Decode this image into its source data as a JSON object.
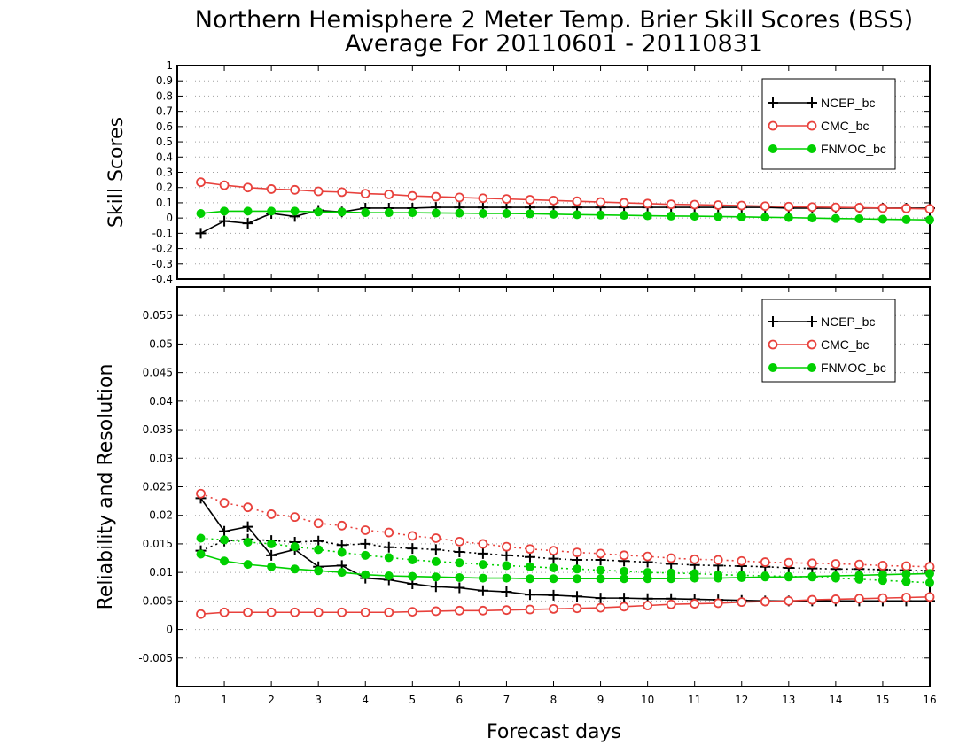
{
  "chart_data": {
    "type": "line",
    "title_line1": "Northern Hemisphere 2 Meter Temp. Brier Skill Scores (BSS)",
    "title_line2": "Average For 20110601 - 20110831",
    "xlabel": "Forecast days",
    "xlim": [
      0,
      16
    ],
    "xticks": [
      "0",
      "1",
      "2",
      "3",
      "4",
      "5",
      "6",
      "7",
      "8",
      "9",
      "10",
      "11",
      "12",
      "13",
      "14",
      "15",
      "16"
    ],
    "colors": {
      "NCEP_bc": "#000000",
      "CMC_bc": "#e8413c",
      "FNMOC_bc": "#00d000",
      "grid": "#a0a0a0"
    },
    "x": [
      0.5,
      1,
      1.5,
      2,
      2.5,
      3,
      3.5,
      4,
      4.5,
      5,
      5.5,
      6,
      6.5,
      7,
      7.5,
      8,
      8.5,
      9,
      9.5,
      10,
      10.5,
      11,
      11.5,
      12,
      12.5,
      13,
      13.5,
      14,
      14.5,
      15,
      15.5,
      16
    ],
    "panels": [
      {
        "ylabel": "Skill Scores",
        "ylim": [
          -0.4,
          1
        ],
        "yticks": [
          "-0.4",
          "-0.3",
          "-0.2",
          "-0.1",
          "0",
          "0.1",
          "0.2",
          "0.3",
          "0.4",
          "0.5",
          "0.6",
          "0.7",
          "0.8",
          "0.9",
          "1"
        ],
        "grid": true,
        "legend": "top-right",
        "legend_entries": [
          "NCEP_bc",
          "CMC_bc",
          "FNMOC_bc"
        ],
        "series": [
          {
            "name": "NCEP_bc",
            "style": "solid",
            "marker": "plus",
            "values": [
              -0.1,
              -0.02,
              -0.035,
              0.03,
              0.01,
              0.05,
              0.04,
              0.065,
              0.065,
              0.065,
              0.07,
              0.07,
              0.07,
              0.07,
              0.07,
              0.07,
              0.07,
              0.07,
              0.07,
              0.07,
              0.07,
              0.07,
              0.07,
              0.07,
              0.07,
              0.065,
              0.065,
              0.065,
              0.065,
              0.065,
              0.065,
              0.065
            ]
          },
          {
            "name": "CMC_bc",
            "style": "solid",
            "marker": "open-circle",
            "values": [
              0.235,
              0.215,
              0.2,
              0.19,
              0.185,
              0.175,
              0.17,
              0.16,
              0.155,
              0.145,
              0.14,
              0.135,
              0.13,
              0.125,
              0.12,
              0.115,
              0.11,
              0.105,
              0.1,
              0.095,
              0.09,
              0.088,
              0.085,
              0.082,
              0.078,
              0.075,
              0.072,
              0.07,
              0.068,
              0.065,
              0.063,
              0.06
            ]
          },
          {
            "name": "FNMOC_bc",
            "style": "solid",
            "marker": "filled-circle",
            "values": [
              0.03,
              0.045,
              0.045,
              0.045,
              0.045,
              0.04,
              0.04,
              0.035,
              0.035,
              0.035,
              0.033,
              0.032,
              0.03,
              0.03,
              0.028,
              0.025,
              0.022,
              0.02,
              0.018,
              0.015,
              0.013,
              0.012,
              0.01,
              0.008,
              0.005,
              0.003,
              0,
              -0.003,
              -0.005,
              -0.008,
              -0.01,
              -0.012
            ]
          }
        ]
      },
      {
        "ylabel": "Reliability and Resolution",
        "ylim": [
          -0.01,
          0.06
        ],
        "yticks": [
          "-0.005",
          "0",
          "0.005",
          "0.01",
          "0.015",
          "0.02",
          "0.025",
          "0.03",
          "0.035",
          "0.04",
          "0.045",
          "0.05",
          "0.055"
        ],
        "grid": true,
        "legend": "top-right",
        "legend_entries": [
          "NCEP_bc",
          "CMC_bc",
          "FNMOC_bc"
        ],
        "series": [
          {
            "name": "NCEP_bc",
            "metric": "reliability",
            "style": "solid",
            "marker": "plus",
            "values": [
              0.023,
              0.0172,
              0.018,
              0.013,
              0.014,
              0.011,
              0.0112,
              0.009,
              0.0087,
              0.008,
              0.0075,
              0.0073,
              0.0068,
              0.0066,
              0.0061,
              0.006,
              0.0058,
              0.0055,
              0.0055,
              0.0054,
              0.0054,
              0.0053,
              0.0052,
              0.0051,
              0.005,
              0.005,
              0.005,
              0.005,
              0.005,
              0.005,
              0.005,
              0.005
            ]
          },
          {
            "name": "NCEP_bc",
            "metric": "resolution",
            "style": "dotted",
            "marker": "plus",
            "values": [
              0.0138,
              0.0155,
              0.0158,
              0.0156,
              0.0153,
              0.0155,
              0.0148,
              0.015,
              0.0144,
              0.0142,
              0.014,
              0.0136,
              0.0133,
              0.013,
              0.0127,
              0.0124,
              0.0122,
              0.0122,
              0.012,
              0.0118,
              0.0115,
              0.0113,
              0.0112,
              0.0111,
              0.011,
              0.0108,
              0.0107,
              0.0106,
              0.0106,
              0.0105,
              0.0104,
              0.0103
            ]
          },
          {
            "name": "CMC_bc",
            "metric": "reliability",
            "style": "solid",
            "marker": "open-circle",
            "values": [
              0.0027,
              0.003,
              0.003,
              0.003,
              0.003,
              0.003,
              0.003,
              0.003,
              0.003,
              0.0031,
              0.0032,
              0.0033,
              0.0033,
              0.0034,
              0.0035,
              0.0036,
              0.0037,
              0.0038,
              0.004,
              0.0042,
              0.0044,
              0.0045,
              0.0046,
              0.0048,
              0.0049,
              0.005,
              0.0052,
              0.0053,
              0.0054,
              0.0055,
              0.0056,
              0.0057
            ]
          },
          {
            "name": "CMC_bc",
            "metric": "resolution",
            "style": "dotted",
            "marker": "open-circle",
            "values": [
              0.0238,
              0.0222,
              0.0214,
              0.0202,
              0.0197,
              0.0186,
              0.0182,
              0.0174,
              0.017,
              0.0164,
              0.016,
              0.0154,
              0.015,
              0.0145,
              0.0141,
              0.0138,
              0.0135,
              0.0133,
              0.013,
              0.0128,
              0.0125,
              0.0123,
              0.0122,
              0.012,
              0.0118,
              0.0117,
              0.0116,
              0.0115,
              0.0114,
              0.0112,
              0.0111,
              0.011
            ]
          },
          {
            "name": "FNMOC_bc",
            "metric": "reliability",
            "style": "solid",
            "marker": "filled-circle",
            "values": [
              0.0132,
              0.012,
              0.0114,
              0.011,
              0.0106,
              0.0103,
              0.01,
              0.0096,
              0.0094,
              0.0093,
              0.0092,
              0.0091,
              0.009,
              0.009,
              0.0089,
              0.0089,
              0.0089,
              0.0089,
              0.0089,
              0.0089,
              0.0089,
              0.009,
              0.009,
              0.0091,
              0.0092,
              0.0092,
              0.0093,
              0.0094,
              0.0095,
              0.0096,
              0.0097,
              0.0098
            ]
          },
          {
            "name": "FNMOC_bc",
            "metric": "resolution",
            "style": "dotted",
            "marker": "filled-circle",
            "values": [
              0.016,
              0.0157,
              0.0153,
              0.015,
              0.0145,
              0.014,
              0.0135,
              0.013,
              0.0126,
              0.0122,
              0.0119,
              0.0117,
              0.0114,
              0.0112,
              0.011,
              0.0108,
              0.0106,
              0.0104,
              0.0102,
              0.01,
              0.0099,
              0.0098,
              0.0096,
              0.0095,
              0.0094,
              0.0093,
              0.0092,
              0.009,
              0.0088,
              0.0086,
              0.0084,
              0.0082
            ]
          }
        ]
      }
    ]
  }
}
